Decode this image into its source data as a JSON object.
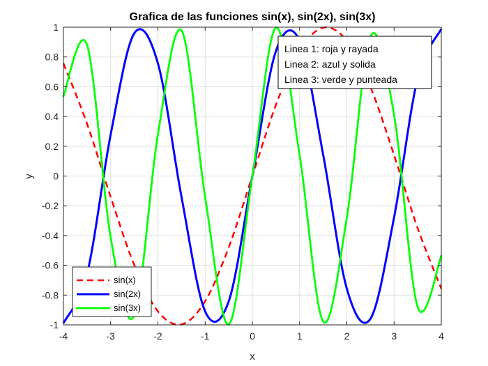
{
  "chart_data": {
    "type": "line",
    "title": "Grafica de las funciones sin(x), sin(2x), sin(3x)",
    "xlabel": "x",
    "ylabel": "y",
    "xlim": [
      -4,
      4
    ],
    "ylim": [
      -1,
      1
    ],
    "xticks": [
      -4,
      -3,
      -2,
      -1,
      0,
      1,
      2,
      3,
      4
    ],
    "yticks": [
      -1,
      -0.8,
      -0.6,
      -0.4,
      -0.2,
      0,
      0.2,
      0.4,
      0.6,
      0.8,
      1
    ],
    "xtick_labels": [
      "-4",
      "-3",
      "-2",
      "-1",
      "0",
      "1",
      "2",
      "3",
      "4"
    ],
    "ytick_labels": [
      "-1",
      "-0.8",
      "-0.6",
      "-0.4",
      "-0.2",
      "0",
      "0.2",
      "0.4",
      "0.6",
      "0.8",
      "1"
    ],
    "grid": true,
    "legend_position": "bottom-left",
    "series": [
      {
        "name": "sin(x)",
        "color": "#ff0000",
        "style": "dashed",
        "x": [
          -4,
          -3.5,
          -3,
          -2.5,
          -2,
          -1.5,
          -1,
          -0.5,
          0,
          0.5,
          1,
          1.5,
          2,
          2.5,
          3,
          3.5,
          4
        ],
        "values": [
          0.757,
          0.351,
          -0.141,
          -0.598,
          -0.909,
          -0.997,
          -0.841,
          -0.479,
          0,
          0.479,
          0.841,
          0.997,
          0.909,
          0.598,
          0.141,
          -0.351,
          -0.757
        ]
      },
      {
        "name": "sin(2x)",
        "color": "#0000ff",
        "style": "solid",
        "x": [
          -4,
          -3.5,
          -3,
          -2.5,
          -2,
          -1.5,
          -1,
          -0.5,
          0,
          0.5,
          1,
          1.5,
          2,
          2.5,
          3,
          3.5,
          4
        ],
        "values": [
          -0.989,
          -0.657,
          0.279,
          0.959,
          0.757,
          -0.141,
          -0.909,
          -0.841,
          0,
          0.841,
          0.909,
          0.141,
          -0.757,
          -0.959,
          -0.279,
          0.657,
          0.989
        ]
      },
      {
        "name": "sin(3x)",
        "color": "#00ff00",
        "style": "dotted",
        "x": [
          -4,
          -3.5,
          -3,
          -2.5,
          -2,
          -1.5,
          -1,
          -0.5,
          0,
          0.5,
          1,
          1.5,
          2,
          2.5,
          3,
          3.5,
          4
        ],
        "values": [
          0.537,
          0.88,
          -0.412,
          -0.938,
          0.279,
          0.978,
          -0.141,
          -0.997,
          0,
          0.997,
          0.141,
          -0.978,
          -0.279,
          0.938,
          0.412,
          -0.88,
          -0.537
        ]
      }
    ],
    "annotation": {
      "lines": [
        "Linea 1: roja y rayada",
        "Linea 2: azul y solida",
        "Linea 3: verde y punteada"
      ]
    }
  }
}
